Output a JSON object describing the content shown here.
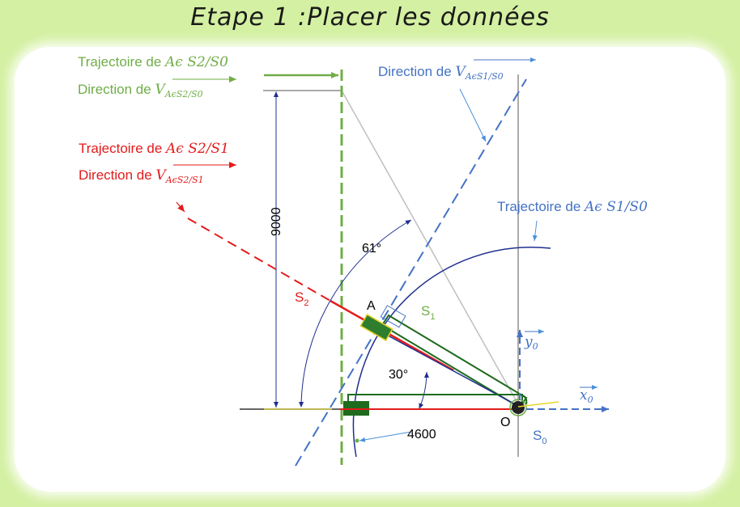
{
  "title": "Etape 1 :Placer les données",
  "colors": {
    "green": "#70ad47",
    "blue": "#4472c4",
    "red": "#e31b1b",
    "dark_green": "#1e6b1e",
    "navy": "#1f2f8f",
    "gray": "#bfbfbf"
  },
  "labels": {
    "traj_s2_s0": {
      "prefix": "Trajectoire de ",
      "math": "Aϵ S2/S0"
    },
    "dir_v_s2_s0": {
      "prefix": "Direction de ",
      "vec": "V",
      "sub": "AϵS2/S0"
    },
    "dir_v_s1_s0": {
      "prefix": "Direction de ",
      "vec": "V",
      "sub": "AϵS1/S0"
    },
    "traj_s2_s1": {
      "prefix": "Trajectoire de ",
      "math": "Aϵ S2/S1"
    },
    "dir_v_s2_s1": {
      "prefix": "Direction de ",
      "vec": "V",
      "sub": "AϵS2/S1"
    },
    "traj_s1_s0": {
      "prefix": "Trajectoire de ",
      "math": "Aϵ S1/S0"
    }
  },
  "dimensions": {
    "height": "9000",
    "width": "4600",
    "angle_61": "61°",
    "angle_30": "30°"
  },
  "points": {
    "A": "A",
    "O": "O",
    "S1": {
      "base": "S",
      "sub": "1"
    },
    "S2": {
      "base": "S",
      "sub": "2"
    },
    "S0": {
      "base": "S",
      "sub": "0"
    }
  },
  "axes": {
    "x0": {
      "base": "x",
      "sub": "0"
    },
    "y0": {
      "base": "y",
      "sub": "0"
    }
  }
}
